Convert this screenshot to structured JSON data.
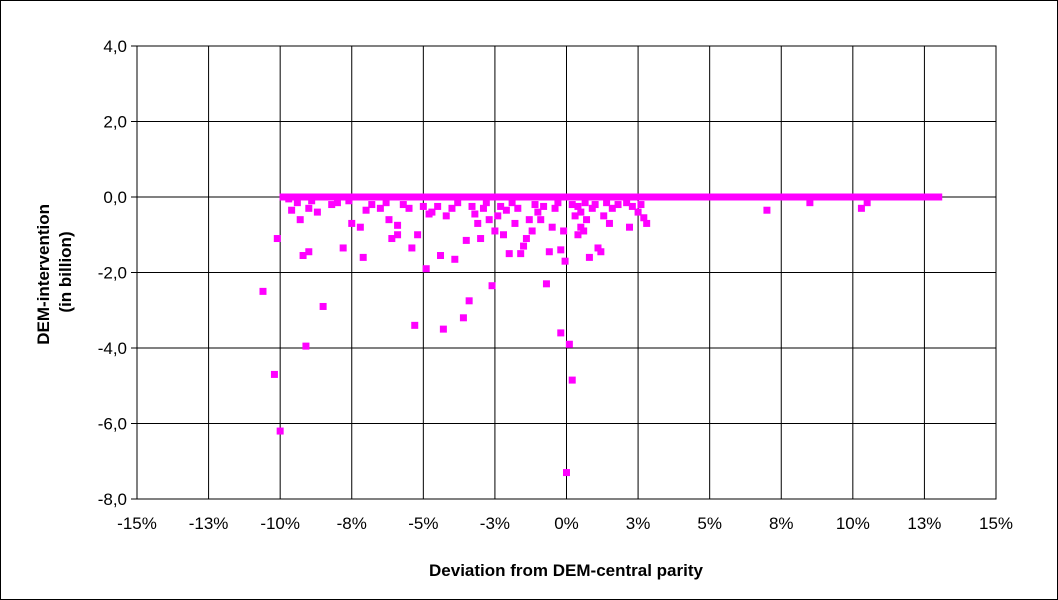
{
  "chart_data": {
    "type": "scatter",
    "xlabel": "Deviation from DEM-central parity",
    "ylabel_lines": [
      "DEM-intervention",
      "(in billion)"
    ],
    "xlim": [
      -15,
      15
    ],
    "ylim": [
      -8,
      4
    ],
    "x_ticks": [
      -15,
      -12.5,
      -10,
      -7.5,
      -5,
      -2.5,
      0,
      2.5,
      5,
      7.5,
      10,
      12.5,
      15
    ],
    "x_tick_labels": [
      "-15%",
      "-13%",
      "-10%",
      "-8%",
      "-5%",
      "-3%",
      "0%",
      "3%",
      "5%",
      "8%",
      "10%",
      "13%",
      "15%"
    ],
    "y_ticks": [
      4,
      2,
      0,
      -2,
      -4,
      -6,
      -8
    ],
    "y_tick_labels": [
      "4,0",
      "2,0",
      "0,0",
      "-2,0",
      "-4,0",
      "-6,0",
      "-8,0"
    ],
    "grid": true,
    "marker_color": "#ff00ff",
    "series": [
      {
        "points": [
          [
            -10.6,
            -2.5
          ],
          [
            -10.2,
            -4.7
          ],
          [
            -10.1,
            -1.1
          ],
          [
            -10.0,
            -6.2
          ],
          [
            -9.6,
            -0.35
          ],
          [
            -9.3,
            -0.6
          ],
          [
            -9.2,
            -1.55
          ],
          [
            -9.1,
            -3.95
          ],
          [
            -9.0,
            -1.45
          ],
          [
            -9.0,
            -0.3
          ],
          [
            -8.7,
            -0.4
          ],
          [
            -8.5,
            -2.9
          ],
          [
            -8.2,
            -0.2
          ],
          [
            -7.8,
            -1.35
          ],
          [
            -7.5,
            -0.7
          ],
          [
            -7.2,
            -0.8
          ],
          [
            -7.1,
            -1.6
          ],
          [
            -7.0,
            -0.35
          ],
          [
            -6.5,
            -0.3
          ],
          [
            -6.2,
            -0.6
          ],
          [
            -6.1,
            -1.1
          ],
          [
            -5.9,
            -1.0
          ],
          [
            -5.9,
            -0.75
          ],
          [
            -5.4,
            -1.35
          ],
          [
            -5.3,
            -3.4
          ],
          [
            -5.2,
            -1.0
          ],
          [
            -4.9,
            -1.9
          ],
          [
            -4.7,
            -0.4
          ],
          [
            -4.4,
            -1.55
          ],
          [
            -4.3,
            -3.5
          ],
          [
            -4.2,
            -0.5
          ],
          [
            -3.9,
            -1.65
          ],
          [
            -3.6,
            -3.2
          ],
          [
            -3.5,
            -1.15
          ],
          [
            -3.4,
            -2.75
          ],
          [
            -3.1,
            -0.7
          ],
          [
            -3.0,
            -1.1
          ],
          [
            -2.9,
            -0.3
          ],
          [
            -2.7,
            -0.6
          ],
          [
            -2.6,
            -2.35
          ],
          [
            -2.5,
            -0.9
          ],
          [
            -2.4,
            -0.5
          ],
          [
            -2.2,
            -1.0
          ],
          [
            -2.0,
            -1.5
          ],
          [
            -1.8,
            -0.7
          ],
          [
            -1.6,
            -1.5
          ],
          [
            -1.5,
            -1.3
          ],
          [
            -1.4,
            -1.1
          ],
          [
            -1.3,
            -0.6
          ],
          [
            -1.2,
            -0.9
          ],
          [
            -1.0,
            -0.4
          ],
          [
            -0.9,
            -0.6
          ],
          [
            -0.7,
            -2.3
          ],
          [
            -0.6,
            -1.45
          ],
          [
            -0.5,
            -0.8
          ],
          [
            -0.4,
            -0.3
          ],
          [
            -0.2,
            -3.6
          ],
          [
            -0.2,
            -1.4
          ],
          [
            -0.1,
            -0.9
          ],
          [
            0.0,
            -7.3
          ],
          [
            -0.05,
            -1.7
          ],
          [
            0.1,
            -3.9
          ],
          [
            0.2,
            -4.85
          ],
          [
            0.3,
            -0.5
          ],
          [
            0.4,
            -1.0
          ],
          [
            0.5,
            -0.8
          ],
          [
            0.5,
            -0.4
          ],
          [
            0.6,
            -0.9
          ],
          [
            0.7,
            -0.6
          ],
          [
            0.8,
            -1.6
          ],
          [
            0.9,
            -0.3
          ],
          [
            1.1,
            -1.35
          ],
          [
            1.2,
            -1.45
          ],
          [
            1.3,
            -0.5
          ],
          [
            1.5,
            -0.7
          ],
          [
            1.6,
            -0.3
          ],
          [
            2.2,
            -0.8
          ],
          [
            2.5,
            -0.4
          ],
          [
            2.7,
            -0.55
          ],
          [
            2.8,
            -0.7
          ],
          [
            7.0,
            -0.35
          ],
          [
            8.5,
            -0.15
          ],
          [
            10.3,
            -0.3
          ],
          [
            10.5,
            -0.15
          ],
          [
            -9.7,
            -0.05
          ],
          [
            -9.4,
            -0.15
          ],
          [
            -8.9,
            -0.1
          ],
          [
            -8.0,
            -0.15
          ],
          [
            -7.6,
            -0.1
          ],
          [
            -6.8,
            -0.2
          ],
          [
            -6.3,
            -0.15
          ],
          [
            -5.7,
            -0.2
          ],
          [
            -5.5,
            -0.3
          ],
          [
            -5.0,
            -0.25
          ],
          [
            -4.8,
            -0.45
          ],
          [
            -4.5,
            -0.25
          ],
          [
            -4.0,
            -0.3
          ],
          [
            -3.8,
            -0.15
          ],
          [
            -3.3,
            -0.25
          ],
          [
            -3.2,
            -0.45
          ],
          [
            -2.8,
            -0.15
          ],
          [
            -2.3,
            -0.25
          ],
          [
            -2.1,
            -0.35
          ],
          [
            -1.9,
            -0.15
          ],
          [
            -1.7,
            -0.3
          ],
          [
            -1.1,
            -0.2
          ],
          [
            -0.8,
            -0.25
          ],
          [
            -0.3,
            -0.15
          ],
          [
            0.2,
            -0.2
          ],
          [
            0.4,
            -0.25
          ],
          [
            0.65,
            -0.15
          ],
          [
            1.0,
            -0.2
          ],
          [
            1.4,
            -0.15
          ],
          [
            1.8,
            -0.2
          ],
          [
            2.1,
            -0.15
          ],
          [
            2.3,
            -0.25
          ],
          [
            2.6,
            -0.2
          ]
        ]
      }
    ],
    "dense_band": {
      "from": -9.9,
      "to": 13.0,
      "y": 0
    }
  }
}
